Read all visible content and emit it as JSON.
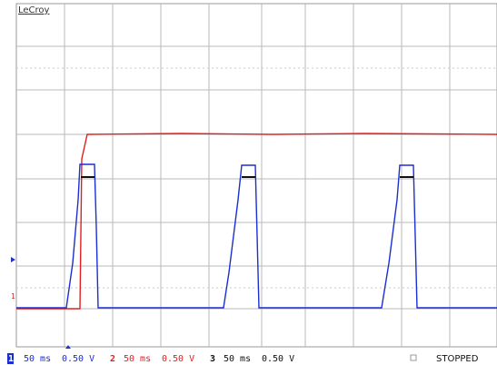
{
  "brand": "LeCroy",
  "channels": [
    {
      "id": "1",
      "timebase": "50 ms",
      "scale": "0.50 V"
    },
    {
      "id": "2",
      "timebase": "50 ms",
      "scale": "0.50 V"
    },
    {
      "id": "3",
      "timebase": "50 ms",
      "scale": "0.50 V"
    }
  ],
  "status": "STOPPED"
}
